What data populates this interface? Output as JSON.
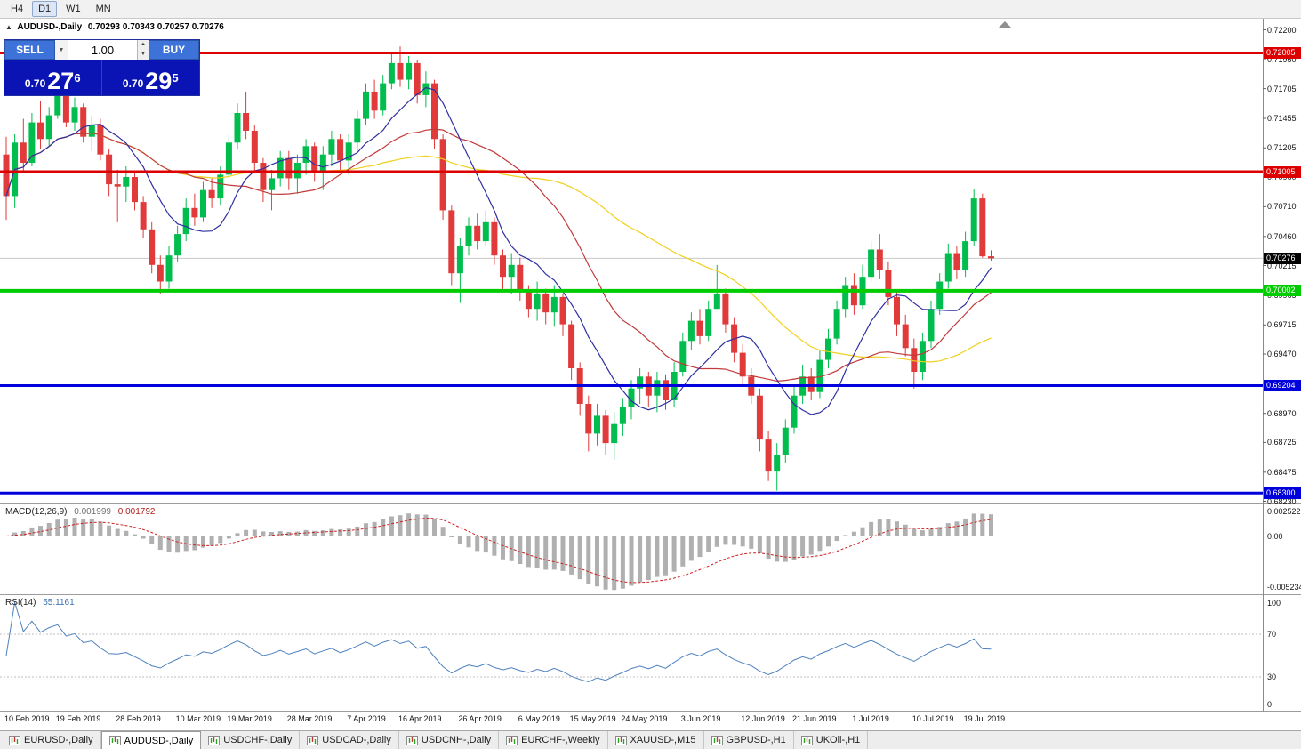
{
  "toolbar": {
    "timeframes": [
      {
        "label": "H4",
        "active": false
      },
      {
        "label": "D1",
        "active": true
      },
      {
        "label": "W1",
        "active": false
      },
      {
        "label": "MN",
        "active": false
      }
    ]
  },
  "header": {
    "marker": "▲",
    "symbol": "AUDUSD-,Daily",
    "ohlc": "0.70293 0.70343 0.70257 0.70276"
  },
  "trade_panel": {
    "sell_label": "SELL",
    "buy_label": "BUY",
    "volume": "1.00",
    "bid_main": "0.70",
    "bid_big": "27",
    "bid_sup": "6",
    "ask_main": "0.70",
    "ask_big": "29",
    "ask_sup": "5",
    "panel_color": "#0a14b4",
    "button_color": "#3d72d9"
  },
  "chart_data": {
    "type": "candlestick",
    "symbol": "AUDUSD",
    "timeframe": "Daily",
    "up_color": "#00bd4e",
    "down_color": "#e13a3a",
    "first_open": 0.7115,
    "closes": [
      0.708,
      0.7125,
      0.7108,
      0.7142,
      0.7128,
      0.7148,
      0.7165,
      0.7142,
      0.7155,
      0.713,
      0.714,
      0.7115,
      0.709,
      0.7088,
      0.7096,
      0.7075,
      0.7052,
      0.7022,
      0.7008,
      0.703,
      0.7048,
      0.707,
      0.7062,
      0.7085,
      0.7078,
      0.7098,
      0.7125,
      0.715,
      0.7135,
      0.7108,
      0.7085,
      0.7095,
      0.7112,
      0.7095,
      0.7108,
      0.7122,
      0.71,
      0.7115,
      0.7128,
      0.711,
      0.7125,
      0.7145,
      0.7168,
      0.7152,
      0.7175,
      0.7192,
      0.7178,
      0.7192,
      0.7165,
      0.7175,
      0.7128,
      0.7068,
      0.7015,
      0.7038,
      0.7055,
      0.7042,
      0.7058,
      0.703,
      0.7012,
      0.7022,
      0.7,
      0.6985,
      0.6998,
      0.6982,
      0.6995,
      0.6972,
      0.6935,
      0.6905,
      0.688,
      0.6895,
      0.6872,
      0.6888,
      0.6902,
      0.6918,
      0.6928,
      0.6912,
      0.6925,
      0.6908,
      0.6932,
      0.6958,
      0.6975,
      0.6962,
      0.6985,
      0.6998,
      0.6972,
      0.6948,
      0.6928,
      0.6912,
      0.6875,
      0.6848,
      0.6862,
      0.6885,
      0.6912,
      0.6928,
      0.6915,
      0.6942,
      0.696,
      0.6985,
      0.7005,
      0.6988,
      0.7012,
      0.7035,
      0.7018,
      0.6995,
      0.6972,
      0.6952,
      0.6932,
      0.6958,
      0.6985,
      0.7008,
      0.7032,
      0.7018,
      0.7042,
      0.7078,
      0.70293,
      0.70276
    ],
    "highs": [
      0.713,
      0.7132,
      0.7145,
      0.715,
      0.716,
      0.7155,
      0.7172,
      0.7168,
      0.7163,
      0.7158,
      0.7148,
      0.7145,
      0.712,
      0.7102,
      0.7105,
      0.71,
      0.708,
      0.7058,
      0.703,
      0.7038,
      0.7055,
      0.7078,
      0.7082,
      0.7092,
      0.7095,
      0.7105,
      0.7132,
      0.7158,
      0.7168,
      0.714,
      0.7112,
      0.7102,
      0.7118,
      0.7118,
      0.7115,
      0.7128,
      0.7125,
      0.7122,
      0.7135,
      0.7132,
      0.7132,
      0.7152,
      0.7175,
      0.7178,
      0.7182,
      0.72,
      0.7206,
      0.7198,
      0.7195,
      0.7185,
      0.7178,
      0.7132,
      0.7072,
      0.7045,
      0.7062,
      0.7065,
      0.7068,
      0.7062,
      0.7035,
      0.7032,
      0.7028,
      0.7005,
      0.7008,
      0.7002,
      0.7005,
      0.6998,
      0.6975,
      0.694,
      0.6912,
      0.6905,
      0.69,
      0.6898,
      0.691,
      0.6925,
      0.6935,
      0.6932,
      0.6932,
      0.693,
      0.694,
      0.6965,
      0.6982,
      0.6985,
      0.6992,
      0.7022,
      0.7002,
      0.6978,
      0.6955,
      0.6935,
      0.6918,
      0.6882,
      0.6872,
      0.6892,
      0.692,
      0.6938,
      0.6935,
      0.695,
      0.6968,
      0.6992,
      0.7012,
      0.7015,
      0.7022,
      0.7042,
      0.7048,
      0.7025,
      0.7,
      0.698,
      0.696,
      0.6965,
      0.6992,
      0.7015,
      0.704,
      0.7038,
      0.705,
      0.7086,
      0.7082,
      0.70343
    ],
    "lows": [
      0.706,
      0.707,
      0.71,
      0.7105,
      0.712,
      0.7122,
      0.7145,
      0.7138,
      0.7135,
      0.7125,
      0.7118,
      0.711,
      0.708,
      0.7058,
      0.7075,
      0.7068,
      0.7045,
      0.7015,
      0.6998,
      0.7002,
      0.7025,
      0.7042,
      0.7055,
      0.7058,
      0.707,
      0.7072,
      0.7095,
      0.712,
      0.7128,
      0.71,
      0.7075,
      0.7068,
      0.7088,
      0.7085,
      0.7082,
      0.7098,
      0.7092,
      0.7085,
      0.7105,
      0.7102,
      0.7098,
      0.7118,
      0.714,
      0.7145,
      0.7148,
      0.717,
      0.7172,
      0.717,
      0.7158,
      0.7155,
      0.712,
      0.706,
      0.7005,
      0.699,
      0.703,
      0.7035,
      0.7038,
      0.7022,
      0.7,
      0.6998,
      0.6992,
      0.6978,
      0.6975,
      0.6972,
      0.697,
      0.6962,
      0.6925,
      0.6895,
      0.6865,
      0.687,
      0.6862,
      0.6858,
      0.6878,
      0.6892,
      0.6905,
      0.6902,
      0.6898,
      0.69,
      0.6902,
      0.6928,
      0.695,
      0.6955,
      0.6958,
      0.699,
      0.6965,
      0.694,
      0.692,
      0.6905,
      0.6865,
      0.684,
      0.6832,
      0.6855,
      0.688,
      0.6905,
      0.6908,
      0.691,
      0.6935,
      0.6955,
      0.6978,
      0.698,
      0.6985,
      0.7008,
      0.701,
      0.6988,
      0.6962,
      0.6945,
      0.6918,
      0.6925,
      0.6952,
      0.698,
      0.7002,
      0.701,
      0.7012,
      0.7038,
      0.7028,
      0.70257
    ],
    "moving_averages": [
      {
        "period": 44,
        "color": "#f0d01e"
      },
      {
        "period": 21,
        "color": "#c13a3a"
      },
      {
        "period": 9,
        "color": "#2f2fa2"
      }
    ],
    "y_axis": {
      "top": 0.722,
      "bottom": 0.6823,
      "ticks": [
        "0.72200",
        "0.71950",
        "0.71705",
        "0.71455",
        "0.71205",
        "0.70960",
        "0.70710",
        "0.70460",
        "0.70215",
        "0.69965",
        "0.69715",
        "0.69470",
        "0.69220",
        "0.68970",
        "0.68725",
        "0.68475",
        "0.68230"
      ]
    },
    "levels": [
      {
        "label": "0.72005",
        "price": 0.72005,
        "color": "#dd0000",
        "width": 3
      },
      {
        "label": "0.71005",
        "price": 0.71005,
        "color": "#dd0000",
        "width": 3
      },
      {
        "label": "0.70002",
        "price": 0.70002,
        "color": "#00cc00",
        "width": 4
      },
      {
        "label": "0.69204",
        "price": 0.69204,
        "color": "#0000dd",
        "width": 3
      },
      {
        "label": "0.68300",
        "price": 0.683,
        "color": "#0000dd",
        "width": 3
      }
    ],
    "current_price": {
      "label": "0.70276",
      "value": 0.70276
    },
    "x_labels": [
      [
        0,
        "10 Feb 2019"
      ],
      [
        6,
        "19 Feb 2019"
      ],
      [
        13,
        "28 Feb 2019"
      ],
      [
        20,
        "10 Mar 2019"
      ],
      [
        26,
        "19 Mar 2019"
      ],
      [
        33,
        "28 Mar 2019"
      ],
      [
        40,
        "7 Apr 2019"
      ],
      [
        46,
        "16 Apr 2019"
      ],
      [
        53,
        "26 Apr 2019"
      ],
      [
        60,
        "6 May 2019"
      ],
      [
        66,
        "15 May 2019"
      ],
      [
        72,
        "24 May 2019"
      ],
      [
        79,
        "3 Jun 2019"
      ],
      [
        86,
        "12 Jun 2019"
      ],
      [
        92,
        "21 Jun 2019"
      ],
      [
        99,
        "1 Jul 2019"
      ],
      [
        106,
        "10 Jul 2019"
      ],
      [
        112,
        "19 Jul 2019"
      ]
    ],
    "indicators": [
      {
        "type": "MACD",
        "label": "MACD(12,26,9)",
        "fast": 12,
        "slow": 26,
        "signal": 9,
        "value_main": "0.001999",
        "value_signal": "0.001792",
        "axis_labels": [
          "0.002522",
          "0.00",
          "-0.005234"
        ],
        "histogram_color": "#b0b0b0",
        "signal_color": "#cc2222"
      },
      {
        "type": "RSI",
        "label": "RSI(14)",
        "period": 14,
        "value": "55.1161",
        "axis_labels": [
          "100",
          "70",
          "30",
          "0"
        ],
        "levels": [
          70,
          30
        ],
        "line_color": "#4f81bd"
      }
    ]
  },
  "tabs": [
    {
      "label": "EURUSD-,Daily",
      "active": false
    },
    {
      "label": "AUDUSD-,Daily",
      "active": true
    },
    {
      "label": "USDCHF-,Daily",
      "active": false
    },
    {
      "label": "USDCAD-,Daily",
      "active": false
    },
    {
      "label": "USDCNH-,Daily",
      "active": false
    },
    {
      "label": "EURCHF-,Weekly",
      "active": false
    },
    {
      "label": "XAUUSD-,M15",
      "active": false
    },
    {
      "label": "GBPUSD-,H1",
      "active": false
    },
    {
      "label": "UKOil-,H1",
      "active": false
    }
  ]
}
